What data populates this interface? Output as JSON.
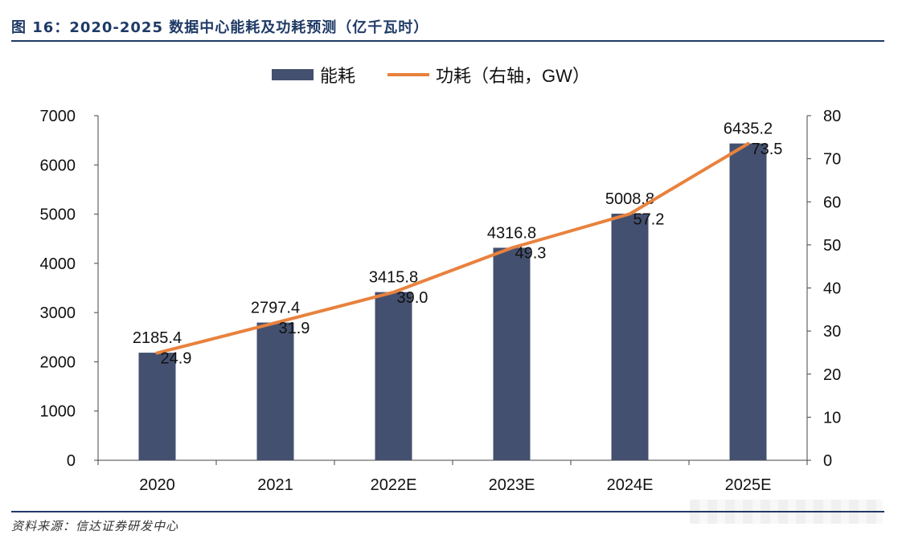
{
  "figure": {
    "title": "图 16：2020-2025 数据中心能耗及功耗预测（亿千瓦时）",
    "source": "资料来源：信达证券研发中心"
  },
  "colors": {
    "bar": "#44506f",
    "line": "#e8823e",
    "axis": "#444444",
    "header": "#1f3a66"
  },
  "chart_data": {
    "type": "bar+line",
    "categories": [
      "2020",
      "2021",
      "2022E",
      "2023E",
      "2024E",
      "2025E"
    ],
    "series": [
      {
        "name": "能耗",
        "type": "bar",
        "axis": "left",
        "values": [
          2185.4,
          2797.4,
          3415.8,
          4316.8,
          5008.8,
          6435.2
        ],
        "labels": [
          "2185.4",
          "2797.4",
          "3415.8",
          "4316.8",
          "5008.8",
          "6435.2"
        ]
      },
      {
        "name": "功耗（右轴，GW）",
        "type": "line",
        "axis": "right",
        "values": [
          24.9,
          31.9,
          39.0,
          49.3,
          57.2,
          73.5
        ],
        "labels": [
          "24.9",
          "31.9",
          "39.0",
          "49.3",
          "57.2",
          "73.5"
        ]
      }
    ],
    "y_left": {
      "min": 0,
      "max": 7000,
      "ticks": [
        "0",
        "1000",
        "2000",
        "3000",
        "4000",
        "5000",
        "6000",
        "7000"
      ]
    },
    "y_right": {
      "min": 0,
      "max": 80,
      "ticks": [
        "0",
        "10",
        "20",
        "30",
        "40",
        "50",
        "60",
        "70",
        "80"
      ]
    },
    "legend_position": "top-center",
    "grid": false
  }
}
